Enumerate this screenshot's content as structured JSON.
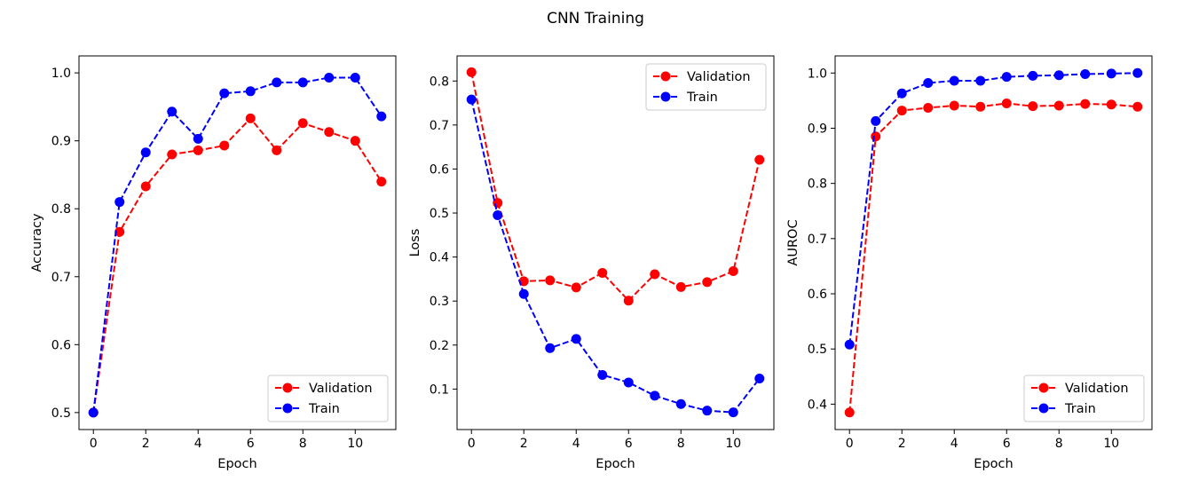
{
  "suptitle": "CNN Training",
  "colors": {
    "Validation": "#ff0000",
    "Train": "#0000ff"
  },
  "chart_data": [
    {
      "type": "line",
      "xlabel": "Epoch",
      "ylabel": "Accuracy",
      "x": [
        0,
        1,
        2,
        3,
        4,
        5,
        6,
        7,
        8,
        9,
        10,
        11
      ],
      "xticks": [
        0,
        2,
        4,
        6,
        8,
        10
      ],
      "xlim": [
        -0.55,
        11.55
      ],
      "yticks": [
        0.5,
        0.6,
        0.7,
        0.8,
        0.9,
        1.0
      ],
      "ytick_labels": [
        "0.5",
        "0.6",
        "0.7",
        "0.8",
        "0.9",
        "1.0"
      ],
      "ylim": [
        0.475,
        1.025
      ],
      "legend": "bottom-right",
      "series": [
        {
          "name": "Validation",
          "values": [
            0.5,
            0.766,
            0.833,
            0.88,
            0.886,
            0.893,
            0.933,
            0.886,
            0.926,
            0.913,
            0.9,
            0.84
          ]
        },
        {
          "name": "Train",
          "values": [
            0.5,
            0.81,
            0.883,
            0.943,
            0.903,
            0.97,
            0.973,
            0.986,
            0.986,
            0.993,
            0.993,
            0.936
          ]
        }
      ]
    },
    {
      "type": "line",
      "xlabel": "Epoch",
      "ylabel": "Loss",
      "x": [
        0,
        1,
        2,
        3,
        4,
        5,
        6,
        7,
        8,
        9,
        10,
        11
      ],
      "xticks": [
        0,
        2,
        4,
        6,
        8,
        10
      ],
      "xlim": [
        -0.55,
        11.55
      ],
      "yticks": [
        0.1,
        0.2,
        0.3,
        0.4,
        0.5,
        0.6,
        0.7,
        0.8
      ],
      "ytick_labels": [
        "0.1",
        "0.2",
        "0.3",
        "0.4",
        "0.5",
        "0.6",
        "0.7",
        "0.8"
      ],
      "ylim": [
        0.008,
        0.857
      ],
      "legend": "top-right",
      "series": [
        {
          "name": "Validation",
          "values": [
            0.82,
            0.523,
            0.345,
            0.347,
            0.331,
            0.364,
            0.301,
            0.361,
            0.332,
            0.343,
            0.368,
            0.621
          ]
        },
        {
          "name": "Train",
          "values": [
            0.758,
            0.495,
            0.316,
            0.193,
            0.214,
            0.132,
            0.115,
            0.085,
            0.066,
            0.051,
            0.047,
            0.124
          ]
        }
      ]
    },
    {
      "type": "line",
      "xlabel": "Epoch",
      "ylabel": "AUROC",
      "x": [
        0,
        1,
        2,
        3,
        4,
        5,
        6,
        7,
        8,
        9,
        10,
        11
      ],
      "xticks": [
        0,
        2,
        4,
        6,
        8,
        10
      ],
      "xlim": [
        -0.55,
        11.55
      ],
      "yticks": [
        0.4,
        0.5,
        0.6,
        0.7,
        0.8,
        0.9,
        1.0
      ],
      "ytick_labels": [
        "0.4",
        "0.5",
        "0.6",
        "0.7",
        "0.8",
        "0.9",
        "1.0"
      ],
      "ylim": [
        0.354,
        1.031
      ],
      "legend": "bottom-right",
      "series": [
        {
          "name": "Validation",
          "values": [
            0.385,
            0.885,
            0.932,
            0.937,
            0.941,
            0.939,
            0.945,
            0.94,
            0.941,
            0.944,
            0.943,
            0.939
          ]
        },
        {
          "name": "Train",
          "values": [
            0.508,
            0.913,
            0.963,
            0.982,
            0.986,
            0.986,
            0.993,
            0.995,
            0.996,
            0.998,
            0.999,
            1.0
          ]
        }
      ]
    }
  ]
}
